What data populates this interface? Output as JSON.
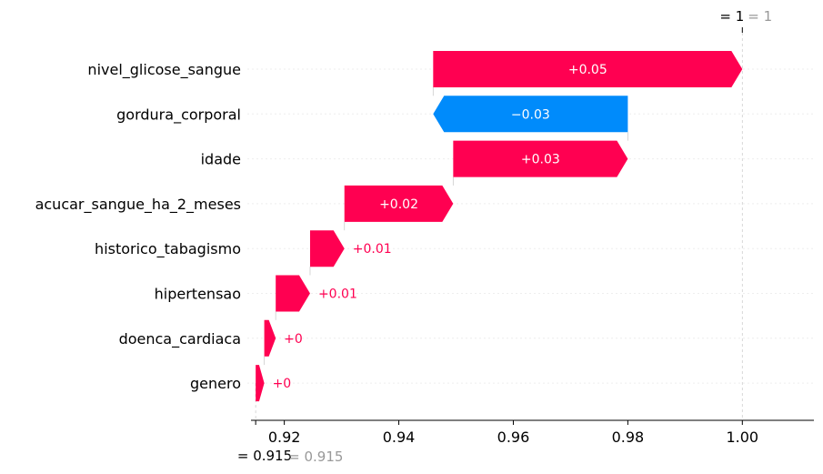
{
  "chart_data": {
    "type": "waterfall",
    "base_value": 0.915,
    "final_value": 1,
    "top_annotation": {
      "eq": "= 1",
      "gray": "= 1"
    },
    "bottom_annotation": {
      "eq": "= 0.915",
      "gray": "= 0.915"
    },
    "features": [
      {
        "name": "nivel_glicose_sangue",
        "value": 0.05,
        "start": 0.946,
        "end": 1.0,
        "label": "+0.05"
      },
      {
        "name": "gordura_corporal",
        "value": -0.03,
        "start": 0.946,
        "end": 0.98,
        "label": "−0.03"
      },
      {
        "name": "idade",
        "value": 0.03,
        "start": 0.9495,
        "end": 0.98,
        "label": "+0.03"
      },
      {
        "name": "acucar_sangue_ha_2_meses",
        "value": 0.02,
        "start": 0.9305,
        "end": 0.9495,
        "label": "+0.02"
      },
      {
        "name": "historico_tabagismo",
        "value": 0.01,
        "start": 0.9245,
        "end": 0.9305,
        "label": "+0.01"
      },
      {
        "name": "hipertensao",
        "value": 0.01,
        "start": 0.9185,
        "end": 0.9245,
        "label": "+0.01"
      },
      {
        "name": "doenca_cardiaca",
        "value": 0,
        "start": 0.9165,
        "end": 0.9185,
        "label": "+0"
      },
      {
        "name": "genero",
        "value": 0,
        "start": 0.915,
        "end": 0.9165,
        "label": "+0"
      }
    ],
    "xlim": [
      0.9145,
      1.0125
    ],
    "xticks": [
      0.92,
      0.94,
      0.96,
      0.98,
      1.0
    ],
    "xtick_labels": [
      "0.92",
      "0.94",
      "0.96",
      "0.98",
      "1.00"
    ],
    "colors": {
      "positive": "#ff0051",
      "negative": "#008bfb",
      "gray_text": "#999999",
      "grid": "#cccccc"
    }
  }
}
